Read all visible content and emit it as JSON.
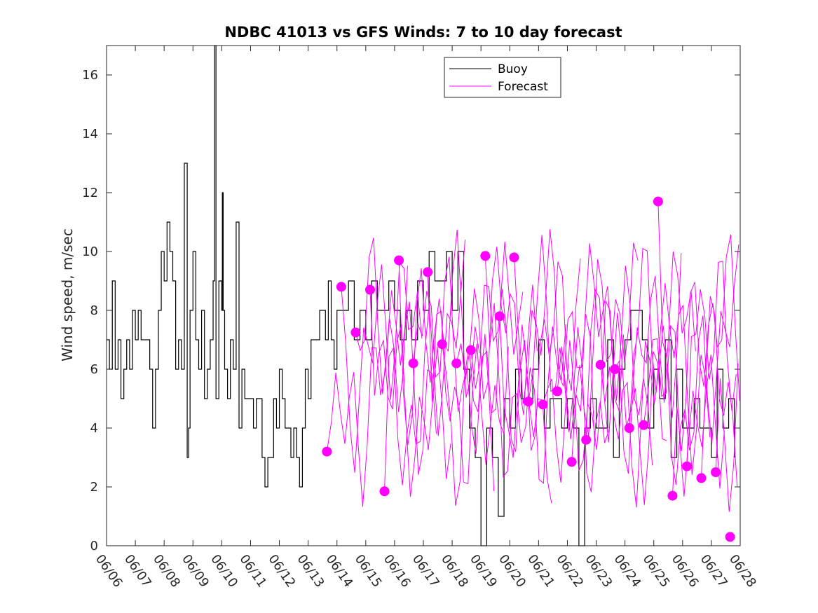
{
  "chart_data": {
    "type": "line",
    "title": "NDBC 41013 vs GFS Winds: 7 to 10 day forecast",
    "xlabel": "",
    "ylabel": "Wind speed, m/sec",
    "xlim": [
      "06/06",
      "06/28"
    ],
    "ylim": [
      0,
      17
    ],
    "yticks": [
      0,
      2,
      4,
      6,
      8,
      10,
      12,
      14,
      16
    ],
    "xtick_labels": [
      "06/06",
      "06/07",
      "06/08",
      "06/09",
      "06/10",
      "06/11",
      "06/12",
      "06/13",
      "06/14",
      "06/15",
      "06/16",
      "06/17",
      "06/18",
      "06/19",
      "06/20",
      "06/21",
      "06/22",
      "06/23",
      "06/24",
      "06/25",
      "06/26",
      "06/27",
      "06/28"
    ],
    "grid": false,
    "legend": {
      "position": "top-center",
      "entries": [
        "Buoy",
        "Forecast"
      ]
    },
    "colors": {
      "buoy": "#000000",
      "forecast": "#ff00ff"
    },
    "series": [
      {
        "name": "Buoy",
        "x_day": [
          0,
          0.1,
          0.2,
          0.3,
          0.4,
          0.5,
          0.6,
          0.7,
          0.8,
          0.9,
          1.0,
          1.1,
          1.2,
          1.3,
          1.4,
          1.5,
          1.6,
          1.7,
          1.8,
          1.9,
          2.0,
          2.1,
          2.2,
          2.3,
          2.4,
          2.5,
          2.6,
          2.7,
          2.8,
          2.85,
          2.9,
          3.0,
          3.1,
          3.2,
          3.3,
          3.4,
          3.5,
          3.6,
          3.7,
          3.75,
          3.8,
          3.9,
          4.0,
          4.02,
          4.05,
          4.1,
          4.2,
          4.3,
          4.4,
          4.5,
          4.6,
          4.7,
          4.8,
          4.9,
          5.0,
          5.1,
          5.2,
          5.3,
          5.4,
          5.5,
          5.6,
          5.7,
          5.8,
          5.9,
          6.0,
          6.1,
          6.2,
          6.3,
          6.4,
          6.5,
          6.6,
          6.7,
          6.8,
          6.9,
          7.0,
          7.1,
          7.2,
          7.3,
          7.4,
          7.5,
          7.6,
          7.7,
          7.8,
          7.9,
          8.0,
          8.2,
          8.4,
          8.6,
          8.8,
          9.0,
          9.2,
          9.4,
          9.6,
          9.8,
          10.0,
          10.2,
          10.4,
          10.6,
          10.8,
          11.0,
          11.2,
          11.4,
          11.6,
          11.8,
          12.0,
          12.2,
          12.4,
          12.6,
          12.8,
          13.0,
          13.2,
          13.4,
          13.6,
          13.8,
          14.0,
          14.2,
          14.4,
          14.6,
          14.8,
          15.0,
          15.2,
          15.4,
          15.6,
          15.8,
          16.0,
          16.2,
          16.4,
          16.6,
          16.8,
          17.0,
          17.2,
          17.4,
          17.6,
          17.8,
          18.0,
          18.2,
          18.4,
          18.6,
          18.8,
          19.0,
          19.2,
          19.4,
          19.6,
          19.8,
          20.0,
          20.2,
          20.4,
          20.6,
          20.8,
          21.0,
          21.2,
          21.4,
          21.6,
          21.8
        ],
        "values": [
          7,
          6,
          9,
          6,
          7,
          5,
          6,
          7,
          6,
          8,
          7,
          8,
          7,
          7,
          7,
          6,
          4,
          6,
          8,
          10,
          9,
          11,
          10,
          9,
          6,
          7,
          6,
          13,
          3,
          4,
          8,
          10,
          7,
          6,
          8,
          5,
          6,
          7,
          9,
          17,
          5,
          9,
          8,
          12,
          8,
          6,
          5,
          7,
          6,
          11,
          4,
          6,
          5,
          5,
          5,
          4,
          5,
          5,
          3,
          2,
          3,
          3,
          5,
          4,
          6,
          5,
          4,
          4,
          3,
          4,
          3,
          2,
          4,
          6,
          5,
          7,
          7,
          7,
          8,
          8,
          7,
          9,
          7,
          6,
          8,
          8,
          9,
          7,
          8,
          7,
          9,
          8,
          8,
          9,
          8,
          7,
          8,
          7,
          9,
          8,
          10,
          9,
          9,
          10,
          8,
          10,
          6,
          4,
          3,
          0,
          4,
          3,
          1,
          5,
          4,
          6,
          5,
          5,
          6,
          7,
          4,
          5,
          5,
          4,
          5,
          4,
          0,
          4,
          5,
          4,
          4,
          7,
          3,
          6,
          7,
          8,
          8,
          7,
          4,
          6,
          5,
          7,
          3,
          6,
          4,
          4,
          5,
          4,
          4,
          3,
          6,
          4,
          5,
          3
        ],
        "note_values": "wind speed m/s"
      },
      {
        "name": "Forecast",
        "points_day": [
          7.65,
          8.15,
          8.65,
          9.15,
          9.65,
          10.15,
          10.65,
          11.15,
          11.65,
          12.15,
          12.65,
          13.15,
          13.65,
          14.15,
          14.65,
          15.15,
          15.65,
          16.15,
          16.65,
          17.15,
          17.65,
          18.15,
          18.65,
          19.15,
          19.65,
          20.15,
          20.65,
          21.15,
          21.65
        ],
        "points_values": [
          3.2,
          8.8,
          7.25,
          8.7,
          1.85,
          9.7,
          6.2,
          9.3,
          6.85,
          6.2,
          6.65,
          9.85,
          7.8,
          9.8,
          4.9,
          4.8,
          5.25,
          2.85,
          3.6,
          6.15,
          6.0,
          4.0,
          4.1,
          11.7,
          1.7,
          2.7,
          2.3,
          2.5,
          0.3
        ]
      }
    ]
  },
  "legend_labels": {
    "buoy": "Buoy",
    "forecast": "Forecast"
  }
}
